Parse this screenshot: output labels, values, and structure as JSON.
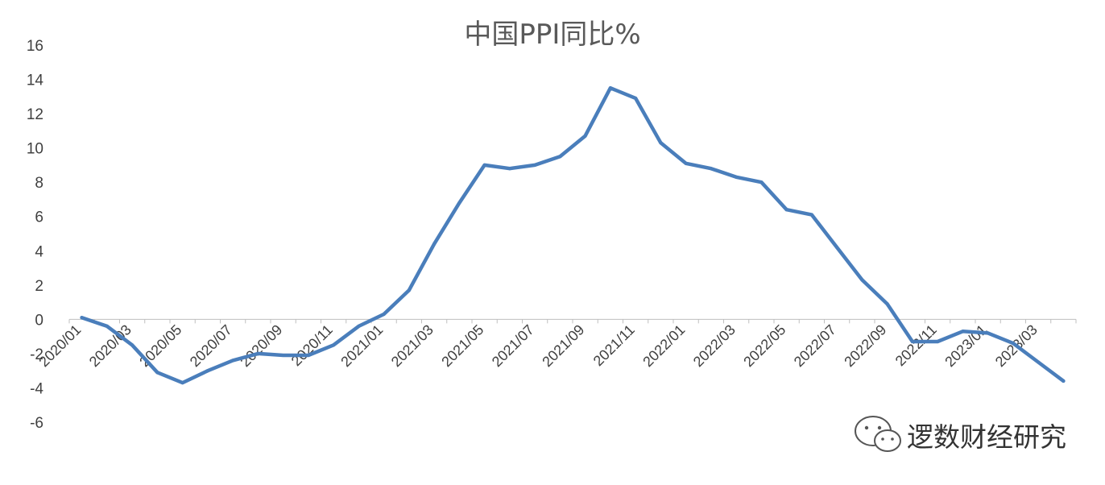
{
  "chart_data": {
    "type": "line",
    "title": "中国PPI同比%",
    "xlabel": "",
    "ylabel": "",
    "ylim": [
      -6,
      16
    ],
    "yticks": [
      16,
      14,
      12,
      10,
      8,
      6,
      4,
      2,
      0,
      -2,
      -4,
      -6
    ],
    "grid": false,
    "legend": "none",
    "x_tick_labels": [
      "2020/01",
      "2020/03",
      "2020/05",
      "2020/07",
      "2020/09",
      "2020/11",
      "2021/01",
      "2021/03",
      "2021/05",
      "2021/07",
      "2021/09",
      "2021/11",
      "2022/01",
      "2022/03",
      "2022/05",
      "2022/07",
      "2022/09",
      "2022/11",
      "2023/01",
      "2023/03"
    ],
    "x": [
      "2020/01",
      "2020/02",
      "2020/03",
      "2020/04",
      "2020/05",
      "2020/06",
      "2020/07",
      "2020/08",
      "2020/09",
      "2020/10",
      "2020/11",
      "2020/12",
      "2021/01",
      "2021/02",
      "2021/03",
      "2021/04",
      "2021/05",
      "2021/06",
      "2021/07",
      "2021/08",
      "2021/09",
      "2021/10",
      "2021/11",
      "2021/12",
      "2022/01",
      "2022/02",
      "2022/03",
      "2022/04",
      "2022/05",
      "2022/06",
      "2022/07",
      "2022/08",
      "2022/09",
      "2022/10",
      "2022/11",
      "2022/12",
      "2023/01",
      "2023/02",
      "2023/03",
      "2023/04"
    ],
    "series": [
      {
        "values": [
          0.1,
          -0.4,
          -1.5,
          -3.1,
          -3.7,
          -3.0,
          -2.4,
          -2.0,
          -2.1,
          -2.1,
          -1.5,
          -0.4,
          0.3,
          1.7,
          4.4,
          6.8,
          9.0,
          8.8,
          9.0,
          9.5,
          10.7,
          13.5,
          12.9,
          10.3,
          9.1,
          8.8,
          8.3,
          8.0,
          6.4,
          6.1,
          4.2,
          2.3,
          0.9,
          -1.3,
          -1.3,
          -0.7,
          -0.8,
          -1.4,
          -2.5,
          -3.6
        ],
        "color": "#4a7ebb"
      }
    ],
    "axis_color": "#bfbfbf"
  },
  "watermark": {
    "text": "逻数财经研究",
    "icon": "wechat-icon"
  }
}
